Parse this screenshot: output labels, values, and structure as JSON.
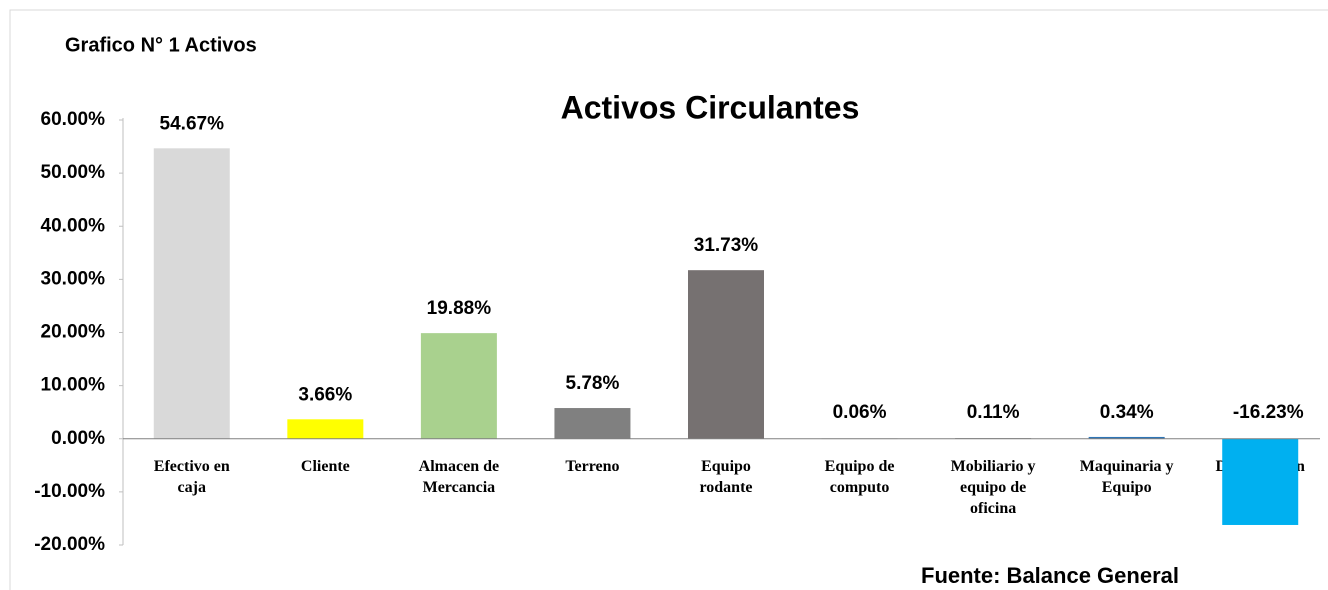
{
  "chart_data": {
    "type": "bar",
    "heading": "Grafico N° 1 Activos",
    "title": "Activos Circulantes",
    "source": "Fuente: Balance General",
    "categories": [
      "Efectivo en caja",
      "Cliente",
      "Almacen de Mercancia",
      "Terreno",
      "Equipo rodante",
      "Equipo de computo",
      "Mobiliario y equipo de oficina",
      "Maquinaria y Equipo",
      "Depreciacion"
    ],
    "values": [
      54.67,
      3.66,
      19.88,
      5.78,
      31.73,
      0.06,
      0.11,
      0.34,
      -16.23
    ],
    "value_labels": [
      "54.67%",
      "3.66%",
      "19.88%",
      "5.78%",
      "31.73%",
      "0.06%",
      "0.11%",
      "0.34%",
      "-16.23%"
    ],
    "colors": [
      "#d9d9d9",
      "#ffff00",
      "#a9d18e",
      "#808080",
      "#767171",
      "#7f7f7f",
      "#7f7f7f",
      "#2e75b6",
      "#00b0f0"
    ],
    "ylim": [
      -20,
      60
    ],
    "yticks": [
      {
        "value": -20,
        "label": "-20.00%"
      },
      {
        "value": -10,
        "label": "-10.00%"
      },
      {
        "value": 0,
        "label": "0.00%"
      },
      {
        "value": 10,
        "label": "10.00%"
      },
      {
        "value": 20,
        "label": "20.00%"
      },
      {
        "value": 30,
        "label": "30.00%"
      },
      {
        "value": 40,
        "label": "40.00%"
      },
      {
        "value": 50,
        "label": "50.00%"
      },
      {
        "value": 60,
        "label": "60.00%"
      }
    ],
    "grid": false
  }
}
